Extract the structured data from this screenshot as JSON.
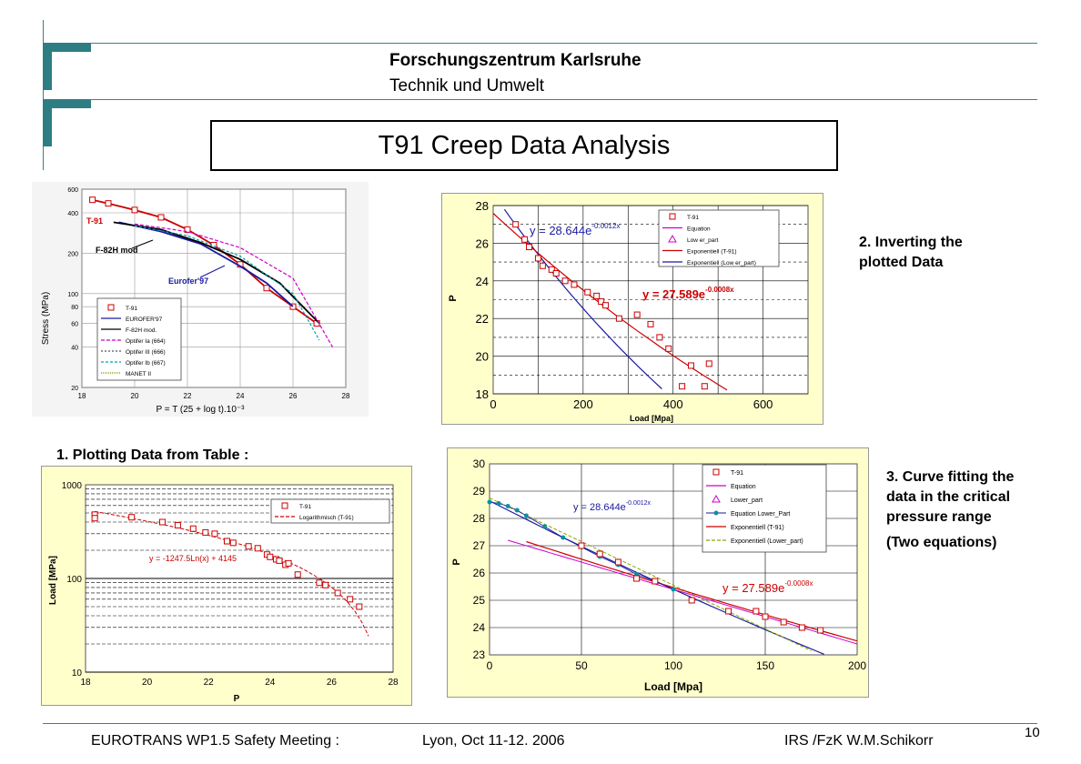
{
  "header": {
    "organization": "Forschungszentrum Karlsruhe",
    "department": "Technik und Umwelt",
    "slide_title": "T91 Creep Data Analysis"
  },
  "notes": {
    "step1": "1.  Plotting Data from Table :",
    "step2_line1": "2.  Inverting the",
    "step2_line2": "plotted Data",
    "step3_line1": "3. Curve fitting the",
    "step3_line2": "data in the critical",
    "step3_line3": "pressure range",
    "step3_line4": "(Two equations)"
  },
  "footer": {
    "meeting": "EUROTRANS  WP1.5 Safety Meeting :",
    "place_date": "Lyon, Oct 11-12.  2006",
    "author": "IRS /FzK    W.M.Schikorr",
    "page": "10"
  },
  "colors": {
    "accent": "#2e7d83",
    "series_red": "#cc0000",
    "series_blue": "#1a1aa0",
    "series_magenta": "#cc00cc",
    "series_cyan": "#00a0b0",
    "panel_bg": "#ffffcc"
  },
  "chart_data": [
    {
      "id": "reference",
      "type": "line",
      "xlabel": "P = T (25 + log t).10⁻³",
      "ylabel": "Stress (MPa)",
      "xlim": [
        18,
        28
      ],
      "ylim": [
        20,
        600
      ],
      "yscale": "log",
      "xticks": [
        "18",
        "20",
        "22",
        "24",
        "26",
        "28"
      ],
      "yticks": [
        "20",
        "40",
        "60",
        "80",
        "100",
        "200",
        "400",
        "600"
      ],
      "annotations": [
        "T-91",
        "F-82H mod",
        "Eurofer'97"
      ],
      "legend": [
        "T-91",
        "EUROFER'97",
        "F-82H mod.",
        "Optifer Ia (664)",
        "Optifer III (666)",
        "Optifer Ib (667)",
        "MANET II"
      ],
      "series": [
        {
          "name": "T-91",
          "x": [
            18.4,
            19.0,
            20.0,
            21.0,
            22.0,
            23.0,
            24.0,
            25.0,
            26.0,
            26.9
          ],
          "y": [
            500,
            470,
            420,
            370,
            300,
            230,
            165,
            110,
            80,
            60
          ]
        },
        {
          "name": "EUROFER'97",
          "x": [
            19.4,
            21.0,
            22.5,
            24.0,
            25.0,
            26.0
          ],
          "y": [
            340,
            290,
            235,
            160,
            120,
            80
          ]
        },
        {
          "name": "F-82H mod.",
          "x": [
            19.2,
            21.0,
            22.5,
            24.0,
            25.5,
            27.0
          ],
          "y": [
            340,
            300,
            240,
            180,
            120,
            60
          ]
        },
        {
          "name": "Optifer Ia (664)",
          "x": [
            20.0,
            22.0,
            24.0,
            26.0,
            27.5
          ],
          "y": [
            330,
            290,
            220,
            130,
            40
          ]
        },
        {
          "name": "Optifer Ib (667)",
          "x": [
            20.0,
            22.0,
            24.0,
            26.0,
            27.0
          ],
          "y": [
            320,
            270,
            190,
            100,
            45
          ]
        }
      ]
    },
    {
      "id": "step1",
      "type": "scatter",
      "xlabel": "P",
      "ylabel": "Load [MPa]",
      "xlim": [
        18,
        28
      ],
      "ylim": [
        10,
        1000
      ],
      "yscale": "log",
      "xticks": [
        "18",
        "20",
        "22",
        "24",
        "26",
        "28"
      ],
      "yticks": [
        "10",
        "100",
        "1000"
      ],
      "legend": [
        "T-91",
        "Logarithmisch (T-91)"
      ],
      "equation": "y = -1247.5Ln(x) + 4145",
      "points": {
        "x": [
          18.3,
          18.3,
          19.5,
          20.5,
          21.0,
          21.5,
          21.9,
          22.2,
          22.6,
          22.8,
          23.3,
          23.6,
          23.9,
          24.0,
          24.2,
          24.3,
          24.5,
          24.6,
          24.9,
          25.6,
          25.8,
          26.2,
          26.6,
          26.9
        ],
        "y": [
          480,
          440,
          450,
          400,
          370,
          340,
          310,
          300,
          250,
          240,
          220,
          210,
          180,
          170,
          160,
          155,
          140,
          145,
          110,
          90,
          85,
          70,
          60,
          50
        ]
      }
    },
    {
      "id": "step2",
      "type": "scatter",
      "xlabel": "Load [Mpa]",
      "ylabel": "P",
      "xlim": [
        0,
        700
      ],
      "ylim": [
        18,
        28
      ],
      "xticks": [
        "0",
        "200",
        "400",
        "600"
      ],
      "yticks": [
        "18",
        "20",
        "22",
        "24",
        "26",
        "28"
      ],
      "legend": [
        "T-91",
        "Equation",
        "Low er_part",
        "Exponentiell (T-91)",
        "Exponentiell (Low er_part)"
      ],
      "equations": [
        "y = 28.644e",
        "-0.0012x",
        "y = 27.589e",
        "-0.0008x"
      ],
      "points": {
        "x": [
          50,
          70,
          80,
          100,
          110,
          130,
          140,
          160,
          180,
          210,
          230,
          240,
          250,
          280,
          320,
          350,
          370,
          390,
          420,
          440,
          470,
          480
        ],
        "y": [
          27.0,
          26.2,
          25.8,
          25.2,
          24.8,
          24.6,
          24.4,
          24.0,
          23.8,
          23.4,
          23.2,
          22.9,
          22.7,
          22.0,
          22.2,
          21.7,
          21.0,
          20.4,
          18.4,
          19.5,
          18.4,
          19.6
        ]
      }
    },
    {
      "id": "step3",
      "type": "scatter",
      "xlabel": "Load [Mpa]",
      "ylabel": "P",
      "xlim": [
        0,
        200
      ],
      "ylim": [
        23,
        30
      ],
      "xticks": [
        "0",
        "50",
        "100",
        "150",
        "200"
      ],
      "yticks": [
        "23",
        "24",
        "25",
        "26",
        "27",
        "28",
        "29",
        "30"
      ],
      "legend": [
        "T-91",
        "Equation",
        "Lower_part",
        "Equation Lower_Part",
        "Exponentiell (T-91)",
        "Exponentiell (Lower_part)"
      ],
      "equations": [
        "y = 28.644e",
        "-0.0012x",
        "y = 27.589e",
        "-0.0008x"
      ],
      "points": {
        "x": [
          50,
          60,
          70,
          80,
          90,
          110,
          130,
          145,
          150,
          160,
          170,
          180
        ],
        "y": [
          27.0,
          26.7,
          26.4,
          25.8,
          25.7,
          25.0,
          24.6,
          24.6,
          24.4,
          24.2,
          24.0,
          23.9
        ]
      },
      "lower_part": {
        "x": [
          0,
          5,
          10,
          15,
          20,
          30,
          40,
          50,
          60,
          70,
          80,
          90,
          100
        ],
        "y": [
          28.6,
          28.55,
          28.45,
          28.3,
          28.1,
          27.7,
          27.3,
          26.95,
          26.6,
          26.3,
          25.95,
          25.7,
          25.4
        ]
      }
    }
  ]
}
